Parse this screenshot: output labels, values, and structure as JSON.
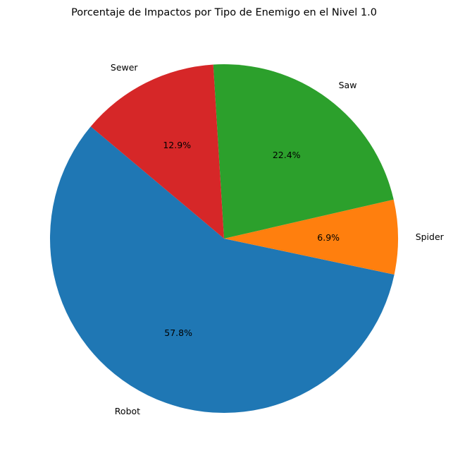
{
  "chart_data": {
    "type": "pie",
    "title": "Porcentaje de Impactos por Tipo de Enemigo en el Nivel 1.0",
    "start_angle_deg": 140,
    "direction": "counterclockwise",
    "slices": [
      {
        "label": "Robot",
        "value": 57.8,
        "pct_label": "57.8%",
        "color": "#1f77b4"
      },
      {
        "label": "Spider",
        "value": 6.9,
        "pct_label": "6.9%",
        "color": "#ff7f0e"
      },
      {
        "label": "Saw",
        "value": 22.4,
        "pct_label": "22.4%",
        "color": "#2ca02c"
      },
      {
        "label": "Sewer",
        "value": 12.9,
        "pct_label": "12.9%",
        "color": "#d62728"
      }
    ]
  }
}
